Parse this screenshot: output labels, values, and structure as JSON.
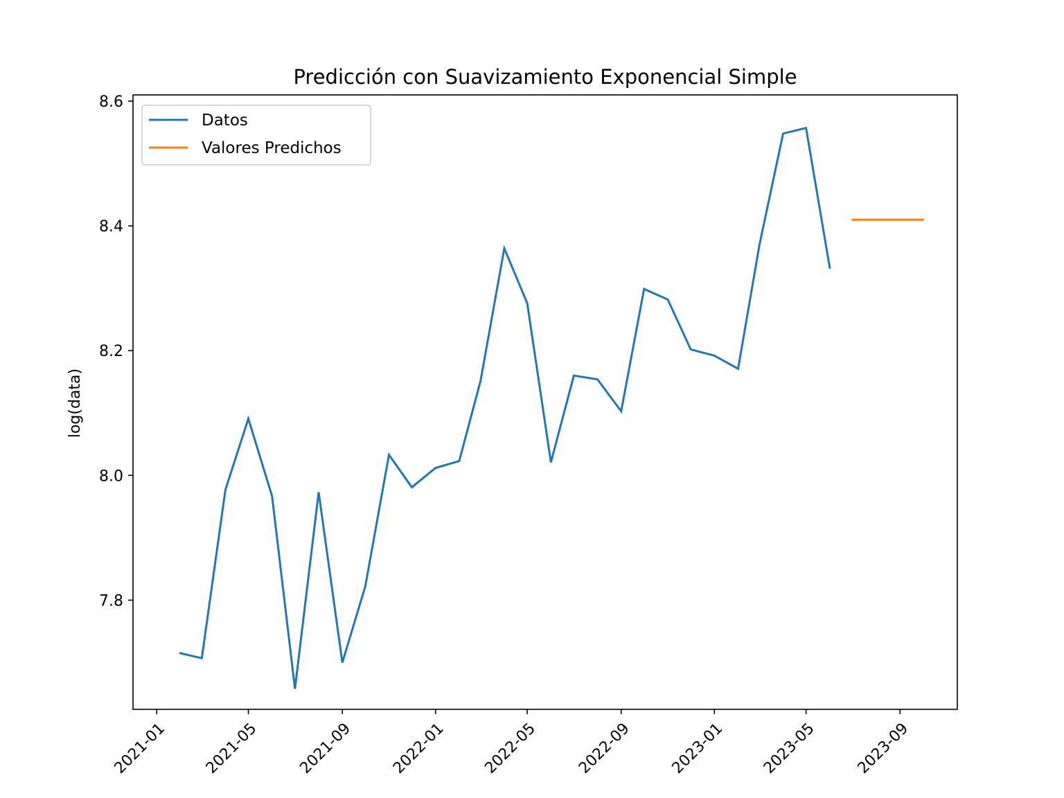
{
  "chart_data": {
    "type": "line",
    "title": "Predicción con Suavizamiento Exponencial Simple",
    "xlabel": "",
    "ylabel": "log(data)",
    "xlim": [
      "2020-12-01",
      "2023-11-15"
    ],
    "ylim": [
      7.625,
      8.61
    ],
    "x_ticks": [
      "2021-01",
      "2021-05",
      "2021-09",
      "2022-01",
      "2022-05",
      "2022-09",
      "2023-01",
      "2023-05",
      "2023-09"
    ],
    "y_ticks": [
      "7.8",
      "8.0",
      "8.2",
      "8.4",
      "8.6"
    ],
    "grid": false,
    "legend_position": "upper-left",
    "series": [
      {
        "name": "Datos",
        "color": "#1f77b4",
        "x": [
          "2021-02-01",
          "2021-03-01",
          "2021-04-01",
          "2021-05-01",
          "2021-06-01",
          "2021-07-01",
          "2021-08-01",
          "2021-09-01",
          "2021-10-01",
          "2021-11-01",
          "2021-12-01",
          "2022-01-01",
          "2022-02-01",
          "2022-03-01",
          "2022-04-01",
          "2022-05-01",
          "2022-06-01",
          "2022-07-01",
          "2022-08-01",
          "2022-09-01",
          "2022-10-01",
          "2022-11-01",
          "2022-12-01",
          "2023-01-01",
          "2023-02-01",
          "2023-03-01",
          "2023-04-01",
          "2023-05-01",
          "2023-06-01"
        ],
        "y": [
          7.715,
          7.707,
          7.977,
          8.091,
          7.967,
          7.658,
          7.973,
          7.7,
          7.822,
          8.033,
          7.981,
          8.012,
          8.023,
          8.152,
          8.364,
          8.276,
          8.021,
          8.16,
          8.154,
          8.103,
          8.299,
          8.282,
          8.202,
          8.192,
          8.171,
          8.37,
          8.548,
          8.557,
          8.333
        ]
      },
      {
        "name": "Valores Predichos",
        "color": "#ff7f0e",
        "x": [
          "2023-07-01",
          "2023-08-01",
          "2023-09-01",
          "2023-10-01"
        ],
        "y": [
          8.41,
          8.41,
          8.41,
          8.41
        ]
      }
    ]
  }
}
